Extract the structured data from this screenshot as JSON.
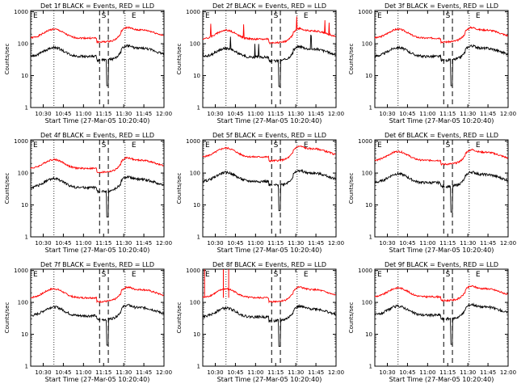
{
  "chart_data": [
    {
      "type": "line",
      "title": "Det 1f BLACK = Events, RED = LLD",
      "seed": 1,
      "red_base": 150,
      "black_base": 40,
      "spiky": false,
      "xlabel": "Start Time (27-Mar-05 10:20:40)",
      "ylabel": "Counts/sec"
    },
    {
      "type": "line",
      "title": "Det 2f BLACK = Events, RED = LLD",
      "seed": 2,
      "red_base": 140,
      "black_base": 38,
      "spiky": true,
      "xlabel": "Start Time (27-Mar-05 10:20:40)",
      "ylabel": "Counts/sec"
    },
    {
      "type": "line",
      "title": "Det 3f BLACK = Events, RED = LLD",
      "seed": 3,
      "red_base": 150,
      "black_base": 40,
      "spiky": false,
      "xlabel": "Start Time (27-Mar-05 10:20:40)",
      "ylabel": "Counts/sec"
    },
    {
      "type": "line",
      "title": "Det 4f BLACK = Events, RED = LLD",
      "seed": 4,
      "red_base": 140,
      "black_base": 35,
      "spiky": false,
      "xlabel": "Start Time (27-Mar-05 10:20:40)",
      "ylabel": "Counts/sec"
    },
    {
      "type": "line",
      "title": "Det 5f BLACK = Events, RED = LLD",
      "seed": 5,
      "red_base": 320,
      "black_base": 55,
      "spiky": false,
      "xlabel": "Start Time (27-Mar-05 10:20:40)",
      "ylabel": "Counts/sec"
    },
    {
      "type": "line",
      "title": "Det 6f BLACK = Events, RED = LLD",
      "seed": 6,
      "red_base": 250,
      "black_base": 50,
      "spiky": false,
      "xlabel": "Start Time (27-Mar-05 10:20:40)",
      "ylabel": "Counts/sec"
    },
    {
      "type": "line",
      "title": "Det 7f BLACK = Events, RED = LLD",
      "seed": 7,
      "red_base": 140,
      "black_base": 38,
      "spiky": false,
      "xlabel": "Start Time (27-Mar-05 10:20:40)",
      "ylabel": "Counts/sec"
    },
    {
      "type": "line",
      "title": "Det 8f BLACK = Events, RED = LLD",
      "seed": 8,
      "red_base": 140,
      "black_base": 35,
      "spiky": false,
      "saturated": true,
      "xlabel": "Start Time (27-Mar-05 10:20:40)",
      "ylabel": "Counts/sec"
    },
    {
      "type": "line",
      "title": "Det 9f BLACK = Events, RED = LLD",
      "seed": 9,
      "red_base": 150,
      "black_base": 40,
      "spiky": false,
      "xlabel": "Start Time (27-Mar-05 10:20:40)",
      "ylabel": "Counts/sec"
    }
  ],
  "shared": {
    "x_ticks": [
      "10:30",
      "10:45",
      "11:00",
      "11:15",
      "11:30",
      "11:45",
      "12:00"
    ],
    "y_ticks": [
      "1",
      "10",
      "100",
      "1000"
    ],
    "ylim": [
      1,
      1100
    ],
    "markers": [
      "E",
      "S",
      "E"
    ],
    "colors": {
      "red": "#ff0000",
      "black": "#000000"
    }
  }
}
